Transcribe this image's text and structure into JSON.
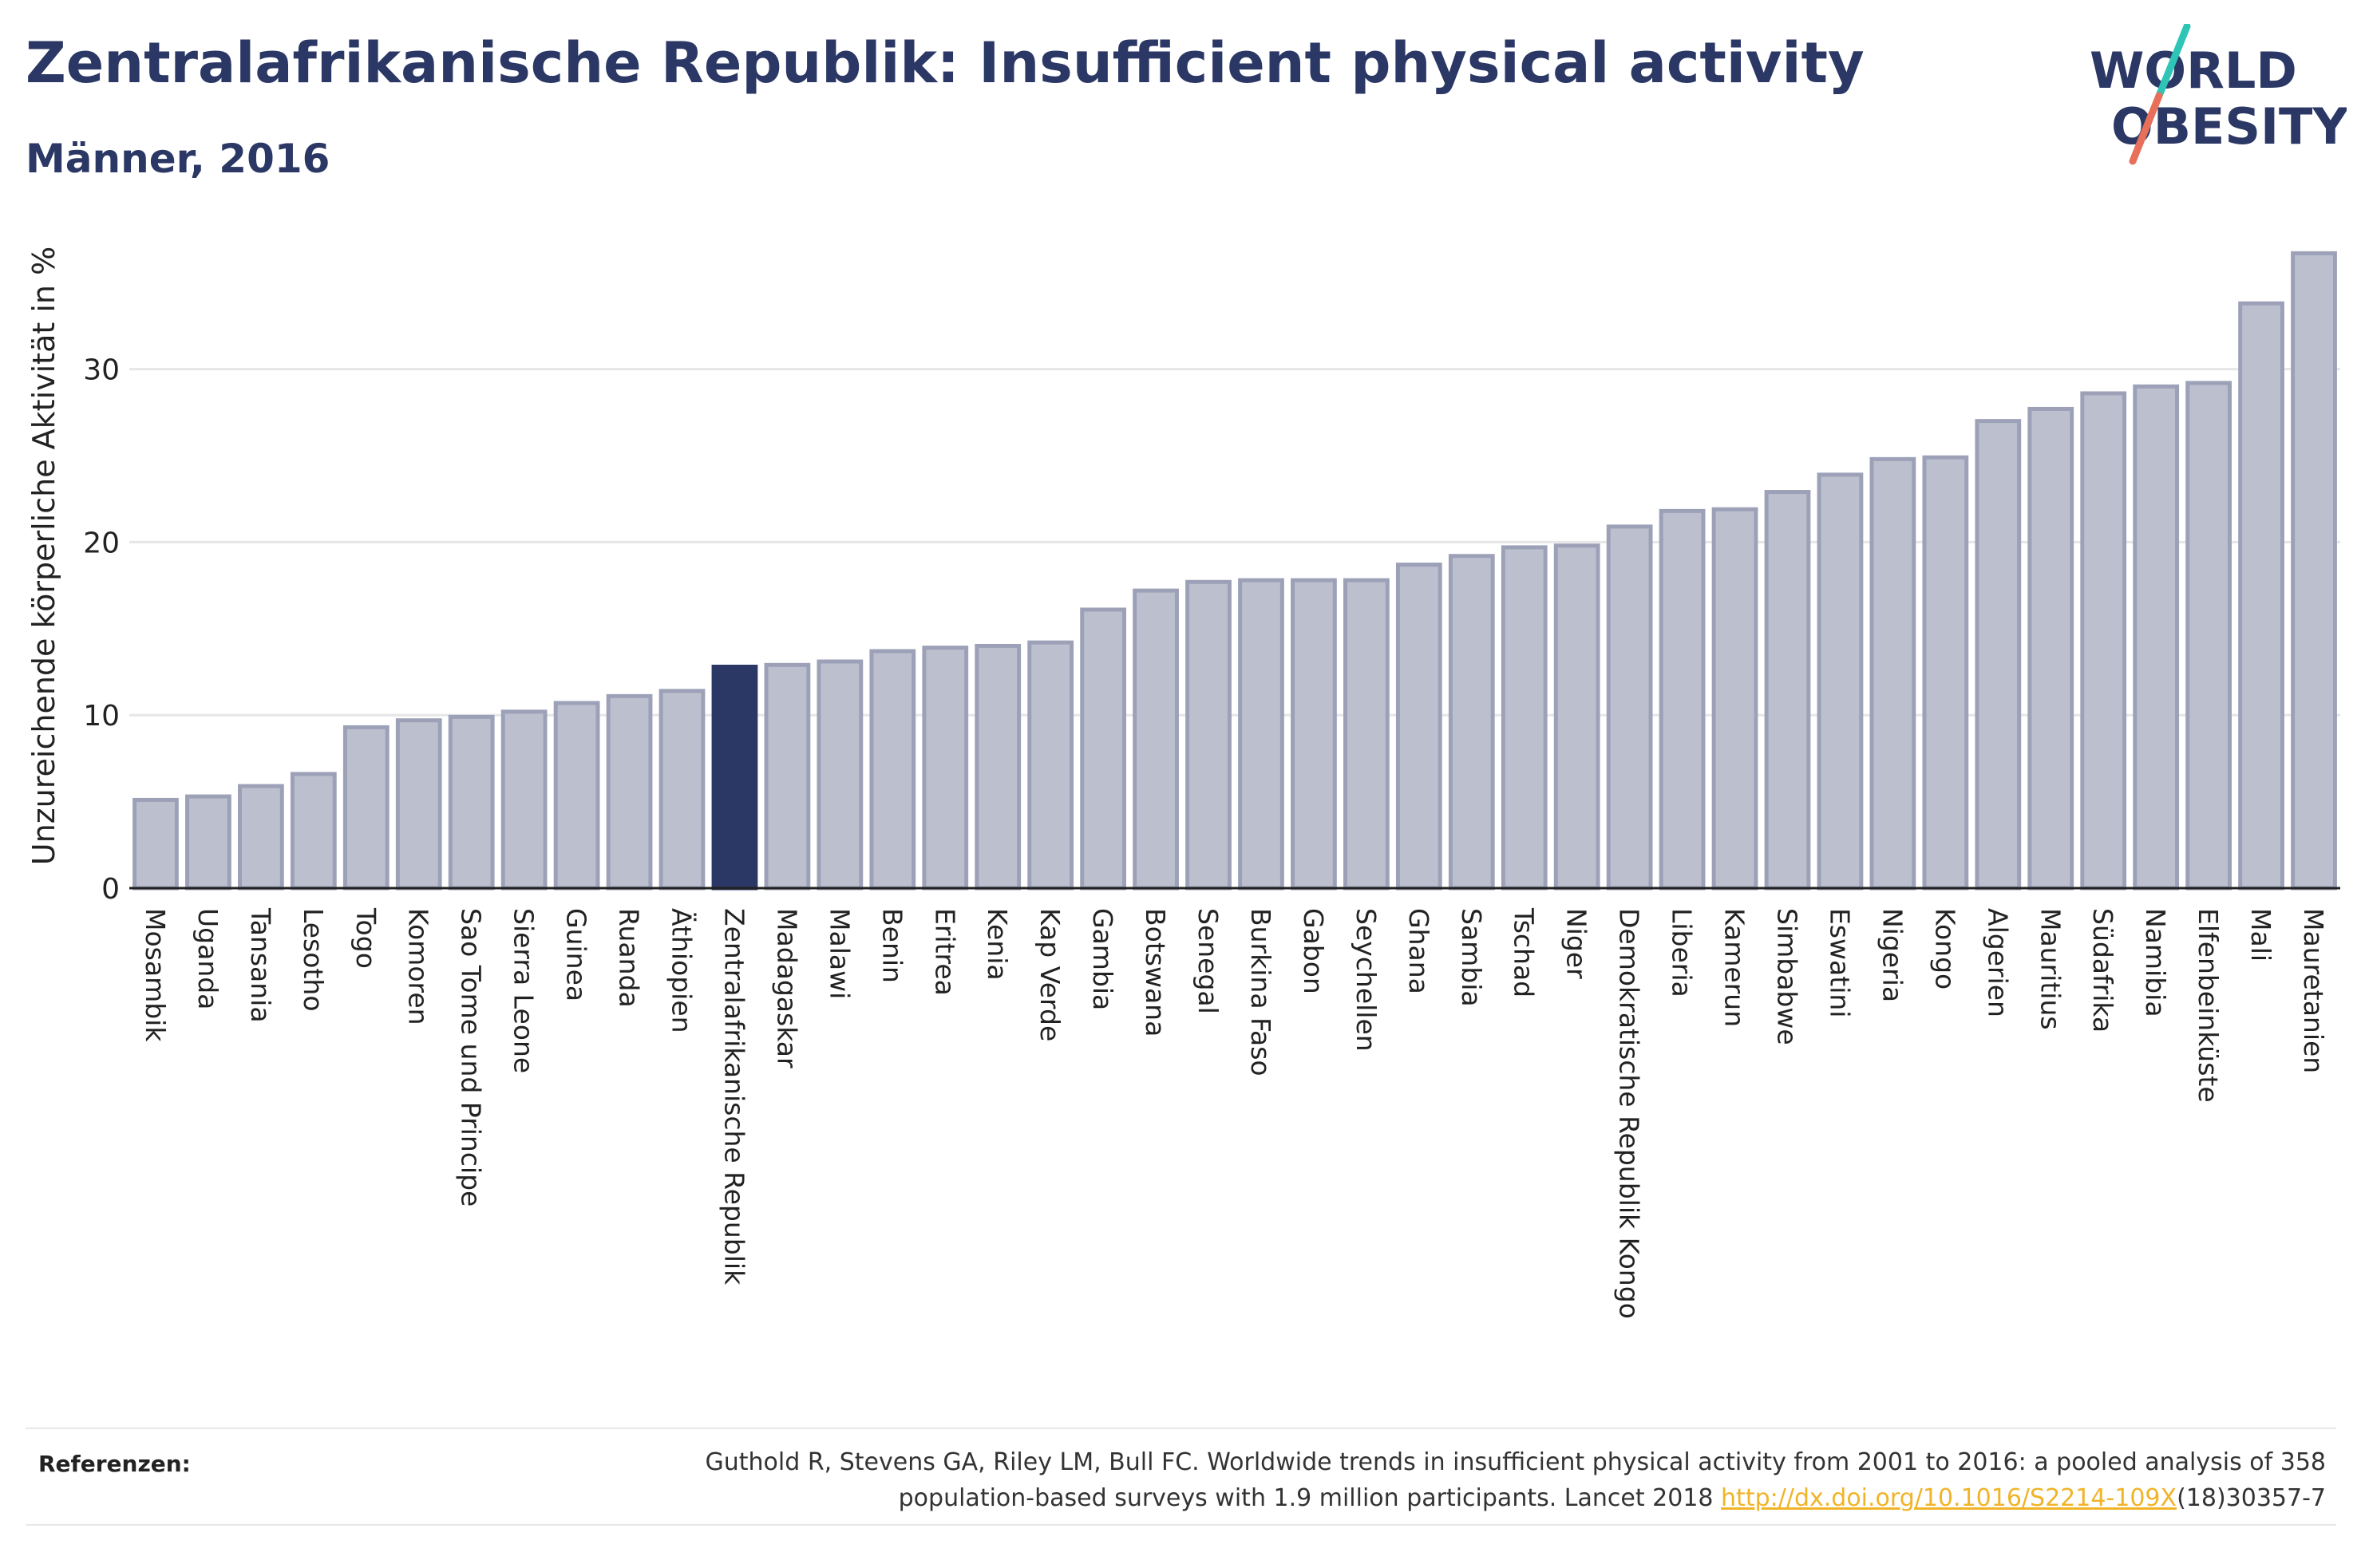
{
  "header": {
    "title": "Zentralafrikanische Republik: Insufficient physical activity",
    "subtitle": "Männer, 2016"
  },
  "logo": {
    "line1": "WORLD",
    "line2": "OBESITY"
  },
  "colors": {
    "title": "#2b3764",
    "bar_fill": "#bcc0ce",
    "bar_stroke": "#9ca1b8",
    "highlight": "#2b3764",
    "logo_teal": "#2ec4b6",
    "logo_red": "#e8705a"
  },
  "chart_data": {
    "type": "bar",
    "title": "Zentralafrikanische Republik: Insufficient physical activity",
    "subtitle": "Männer, 2016",
    "xlabel": "",
    "ylabel": "Unzureichende körperliche Aktivität in %",
    "ylim": [
      0,
      37.5
    ],
    "yticks": [
      0,
      10,
      20,
      30
    ],
    "grid": true,
    "highlight": "Zentralafrikanische Republik",
    "categories": [
      "Mosambik",
      "Uganda",
      "Tansania",
      "Lesotho",
      "Togo",
      "Komoren",
      "Sao Tome und Principe",
      "Sierra Leone",
      "Guinea",
      "Ruanda",
      "Äthiopien",
      "Zentralafrikanische Republik",
      "Madagaskar",
      "Malawi",
      "Benin",
      "Eritrea",
      "Kenia",
      "Kap Verde",
      "Gambia",
      "Botswana",
      "Senegal",
      "Burkina Faso",
      "Gabon",
      "Seychellen",
      "Ghana",
      "Sambia",
      "Tschad",
      "Niger",
      "Demokratische Republik Kongo",
      "Liberia",
      "Kamerun",
      "Simbabwe",
      "Eswatini",
      "Nigeria",
      "Kongo",
      "Algerien",
      "Mauritius",
      "Südafrika",
      "Namibia",
      "Elfenbeinküste",
      "Mali",
      "Mauretanien"
    ],
    "values": [
      5.1,
      5.3,
      5.9,
      6.6,
      9.3,
      9.7,
      9.9,
      10.2,
      10.7,
      11.1,
      11.4,
      12.8,
      12.9,
      13.1,
      13.7,
      13.9,
      14.0,
      14.2,
      16.1,
      17.2,
      17.7,
      17.8,
      17.8,
      17.8,
      18.7,
      19.2,
      19.7,
      19.8,
      20.9,
      21.8,
      21.9,
      22.9,
      23.9,
      24.8,
      24.9,
      27.0,
      27.7,
      28.6,
      29.0,
      29.2,
      33.8,
      36.7
    ]
  },
  "references": {
    "label": "Referenzen:",
    "line1": "Guthold R, Stevens GA, Riley LM, Bull FC. Worldwide trends in insufficient physical activity from 2001 to 2016: a pooled analysis of 358",
    "line2_prefix": "population-based surveys with 1.9 million participants. Lancet 2018 ",
    "link": "http://dx.doi.org/10.1016/S2214-109X",
    "line2_suffix": "(18)30357-7"
  }
}
